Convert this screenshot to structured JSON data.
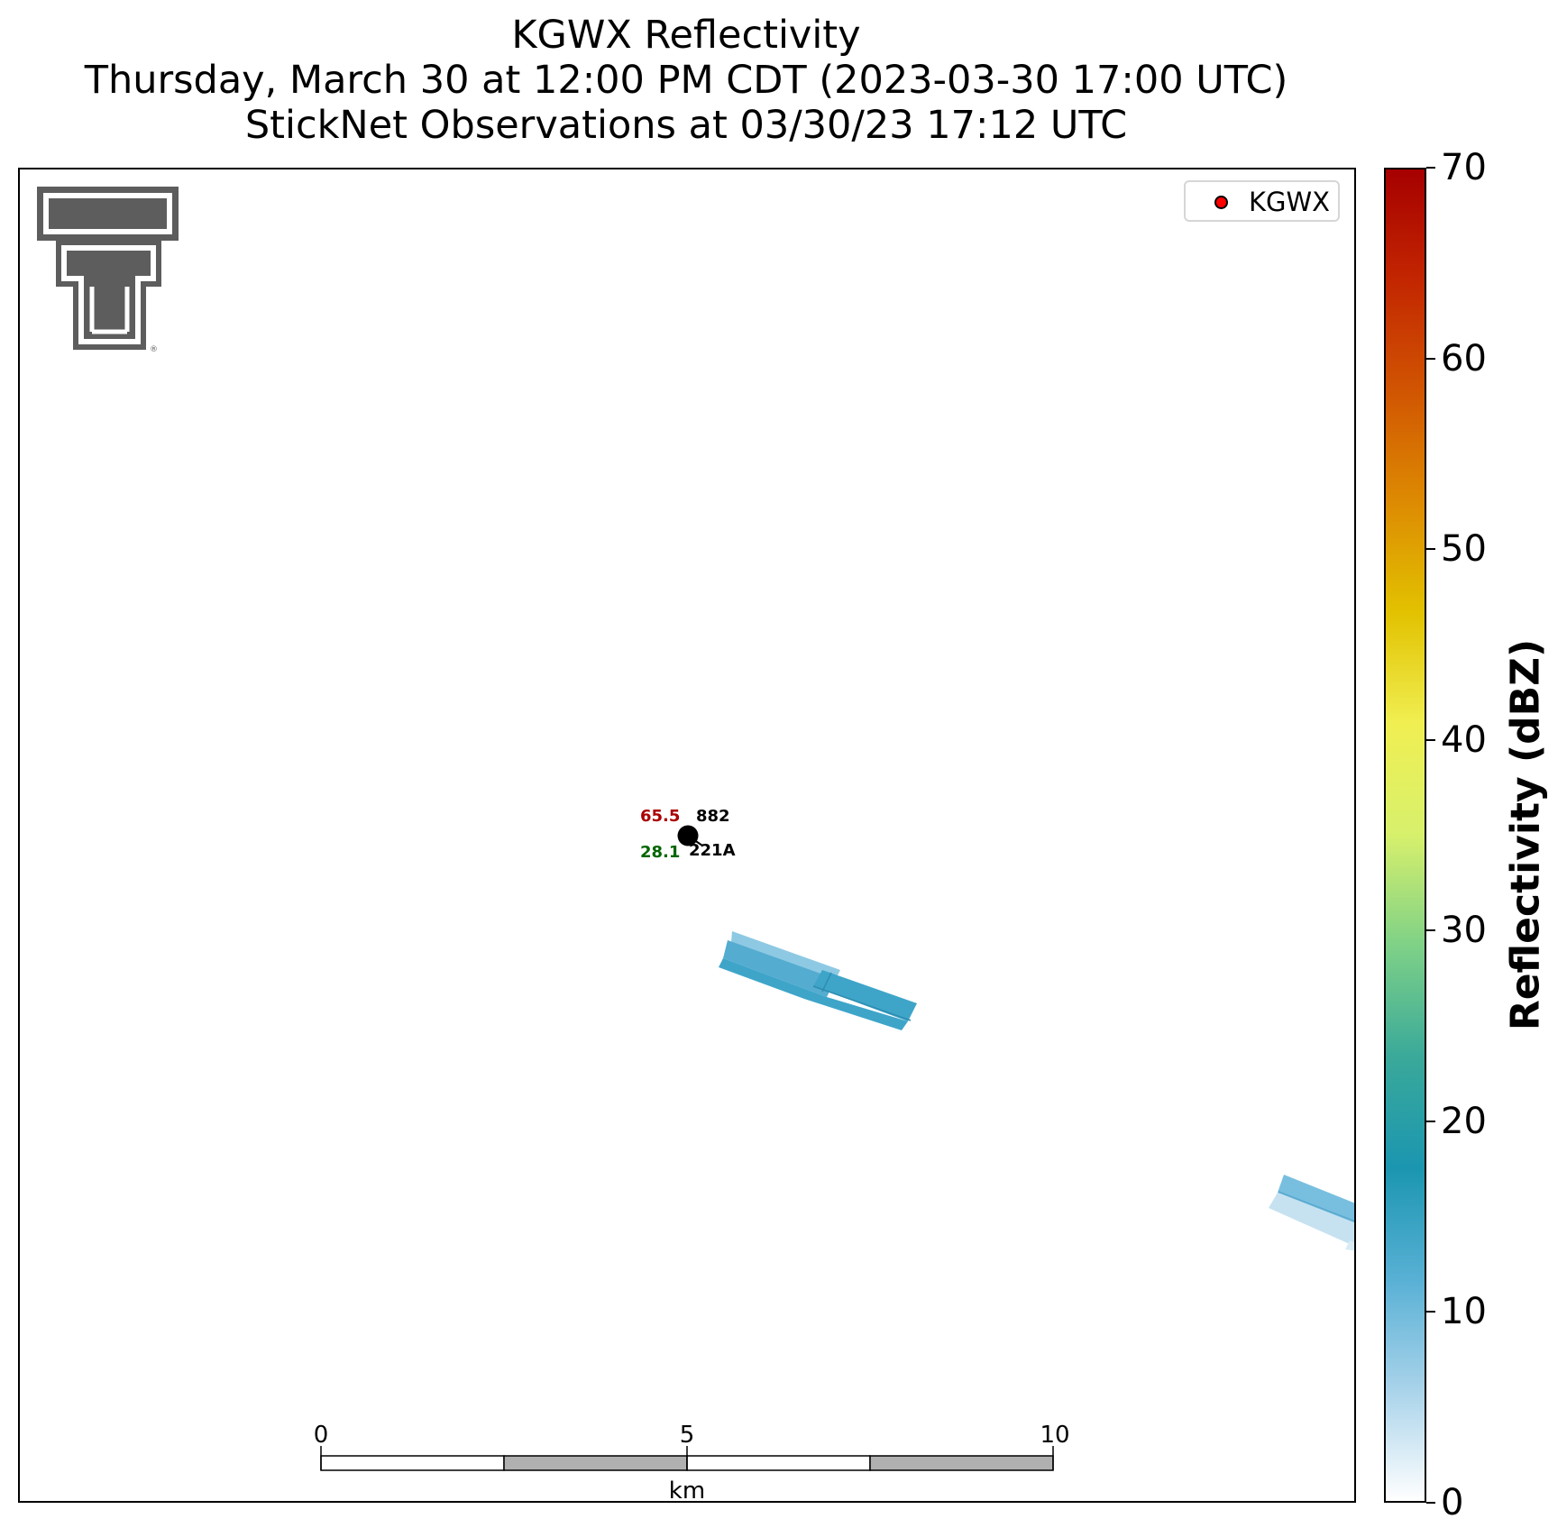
{
  "title": {
    "line1": "KGWX Reflectivity",
    "line2": "Thursday, March 30 at 12:00 PM CDT (2023-03-30 17:00 UTC)",
    "line3": "StickNet Observations at 03/30/23 17:12 UTC"
  },
  "legend": {
    "label": "KGWX",
    "marker_color": "#ff0000"
  },
  "logo": {
    "name": "Texas Tech double-T logo",
    "lettering": "®"
  },
  "station": {
    "temperature": "65.5",
    "temperature_color": "#aa0000",
    "dewpoint": "28.1",
    "dewpoint_color": "#006600",
    "pressure_code": "882",
    "station_id": "221A"
  },
  "colorbar": {
    "label": "Reflectivity (dBZ)",
    "min": 0,
    "max": 70,
    "ticks": [
      "0",
      "10",
      "20",
      "30",
      "40",
      "50",
      "60",
      "70"
    ],
    "colors": [
      "#ffffff",
      "#a9d3ea",
      "#58b0d5",
      "#1b96b0",
      "#3aa99a",
      "#7ed187",
      "#d7f06c",
      "#f0ef52",
      "#e2c201",
      "#dd8b02",
      "#d15502",
      "#c32601",
      "#a60000"
    ]
  },
  "scale_bar": {
    "labels": [
      "0",
      "5",
      "10"
    ],
    "unit": "km"
  },
  "reflectivity_echoes": [
    {
      "name": "echo-near-station",
      "dbz": 5
    },
    {
      "name": "echo-east-edge",
      "dbz": 3
    }
  ]
}
